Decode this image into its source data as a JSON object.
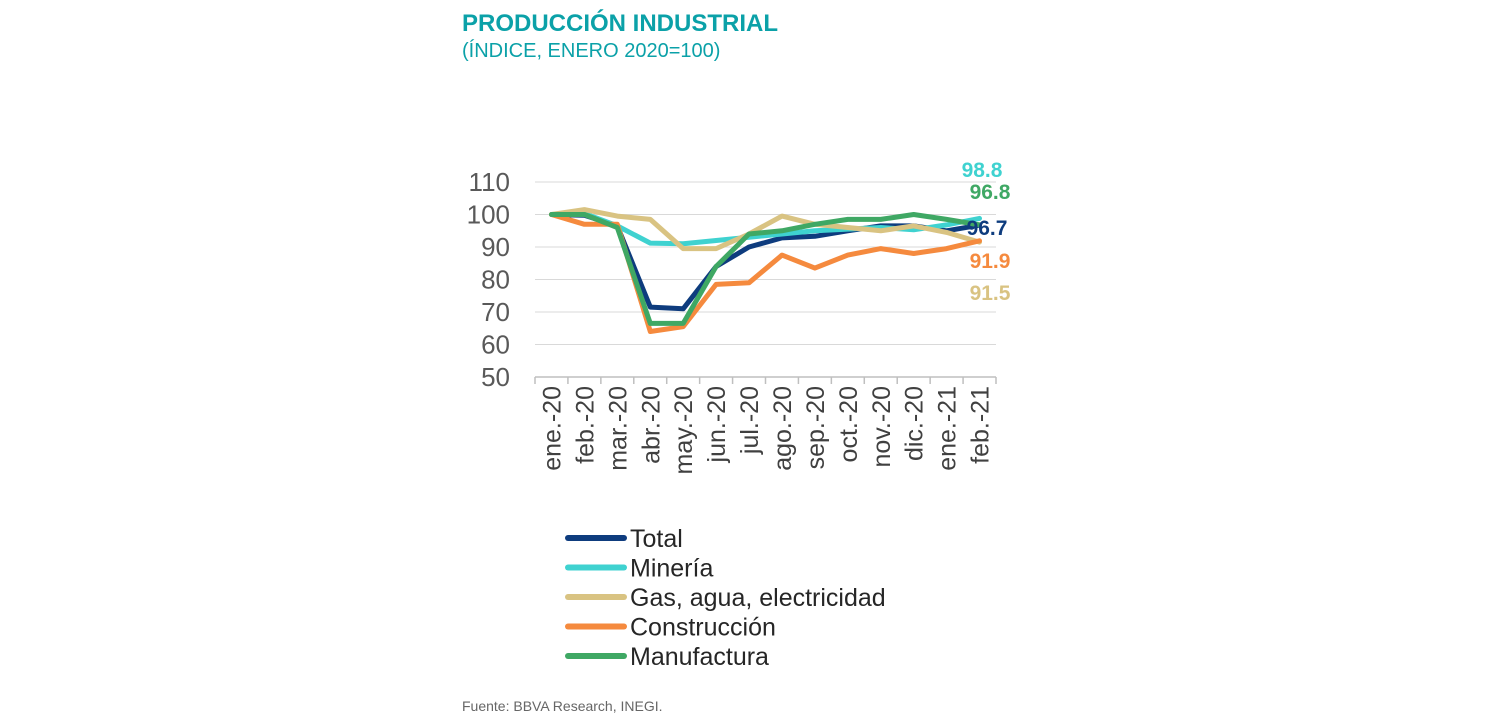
{
  "header": {
    "title": "PRODUCCIÓN INDUSTRIAL",
    "subtitle": "(ÍNDICE, ENERO 2020=100)"
  },
  "footer": {
    "source": "Fuente: BBVA Research, INEGI."
  },
  "chart_data": {
    "type": "line",
    "title": "PRODUCCIÓN INDUSTRIAL",
    "subtitle": "(ÍNDICE, ENERO 2020=100)",
    "xlabel": "",
    "ylabel": "",
    "ylim": [
      50,
      110
    ],
    "yticks": [
      50,
      60,
      70,
      80,
      90,
      100,
      110
    ],
    "grid": true,
    "legend_position": "bottom",
    "categories": [
      "ene.-20",
      "feb.-20",
      "mar.-20",
      "abr.-20",
      "may.-20",
      "jun.-20",
      "jul.-20",
      "ago.-20",
      "sep.-20",
      "oct.-20",
      "nov.-20",
      "dic.-20",
      "ene.-21",
      "feb.-21"
    ],
    "series": [
      {
        "name": "Total",
        "color": "#0E3C7E",
        "values": [
          100,
          99.8,
          96.5,
          71.5,
          71.0,
          84.0,
          90.0,
          92.8,
          93.3,
          95.0,
          96.5,
          96.5,
          95.0,
          96.7
        ],
        "end_label": "96.7"
      },
      {
        "name": "Minería",
        "color": "#3FD2D0",
        "values": [
          100,
          100.3,
          96.5,
          91.2,
          91.0,
          92.0,
          93.0,
          94.0,
          95.0,
          95.5,
          96.0,
          95.3,
          96.8,
          98.8
        ],
        "end_label": "98.8"
      },
      {
        "name": "Gas, agua, electricidad",
        "color": "#D9C382",
        "values": [
          100,
          101.5,
          99.5,
          98.5,
          89.5,
          89.5,
          94.0,
          99.5,
          97.0,
          96.0,
          95.0,
          96.5,
          94.5,
          91.5
        ],
        "end_label": "91.5"
      },
      {
        "name": "Construcción",
        "color": "#F58A3E",
        "values": [
          100,
          97.0,
          97.0,
          64.0,
          65.5,
          78.5,
          79.0,
          87.5,
          83.5,
          87.5,
          89.5,
          88.0,
          89.5,
          91.9
        ],
        "end_label": "91.9"
      },
      {
        "name": "Manufactura",
        "color": "#3FA864",
        "values": [
          100,
          100,
          96.0,
          66.5,
          66.5,
          84.0,
          94.0,
          95.0,
          97.0,
          98.5,
          98.5,
          100.0,
          98.5,
          96.8
        ],
        "end_label": "96.8"
      }
    ]
  }
}
